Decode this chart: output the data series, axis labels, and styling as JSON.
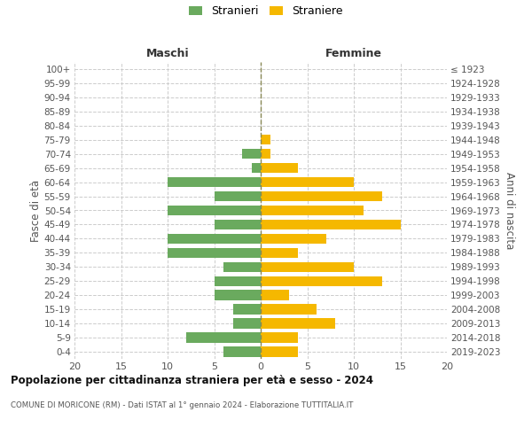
{
  "age_groups": [
    "100+",
    "95-99",
    "90-94",
    "85-89",
    "80-84",
    "75-79",
    "70-74",
    "65-69",
    "60-64",
    "55-59",
    "50-54",
    "45-49",
    "40-44",
    "35-39",
    "30-34",
    "25-29",
    "20-24",
    "15-19",
    "10-14",
    "5-9",
    "0-4"
  ],
  "birth_years": [
    "≤ 1923",
    "1924-1928",
    "1929-1933",
    "1934-1938",
    "1939-1943",
    "1944-1948",
    "1949-1953",
    "1954-1958",
    "1959-1963",
    "1964-1968",
    "1969-1973",
    "1974-1978",
    "1979-1983",
    "1984-1988",
    "1989-1993",
    "1994-1998",
    "1999-2003",
    "2004-2008",
    "2009-2013",
    "2014-2018",
    "2019-2023"
  ],
  "males": [
    0,
    0,
    0,
    0,
    0,
    0,
    2,
    1,
    10,
    5,
    10,
    5,
    10,
    10,
    4,
    5,
    5,
    3,
    3,
    8,
    4
  ],
  "females": [
    0,
    0,
    0,
    0,
    0,
    1,
    1,
    4,
    10,
    13,
    11,
    15,
    7,
    4,
    10,
    13,
    3,
    6,
    8,
    4,
    4
  ],
  "male_color": "#6aaa5e",
  "female_color": "#f5b800",
  "background_color": "#ffffff",
  "grid_color": "#cccccc",
  "title": "Popolazione per cittadinanza straniera per età e sesso - 2024",
  "subtitle": "COMUNE DI MORICONE (RM) - Dati ISTAT al 1° gennaio 2024 - Elaborazione TUTTITALIA.IT",
  "xlabel_left": "Maschi",
  "xlabel_right": "Femmine",
  "ylabel_left": "Fasce di età",
  "ylabel_right": "Anni di nascita",
  "legend_male": "Stranieri",
  "legend_female": "Straniere",
  "xlim": 20
}
